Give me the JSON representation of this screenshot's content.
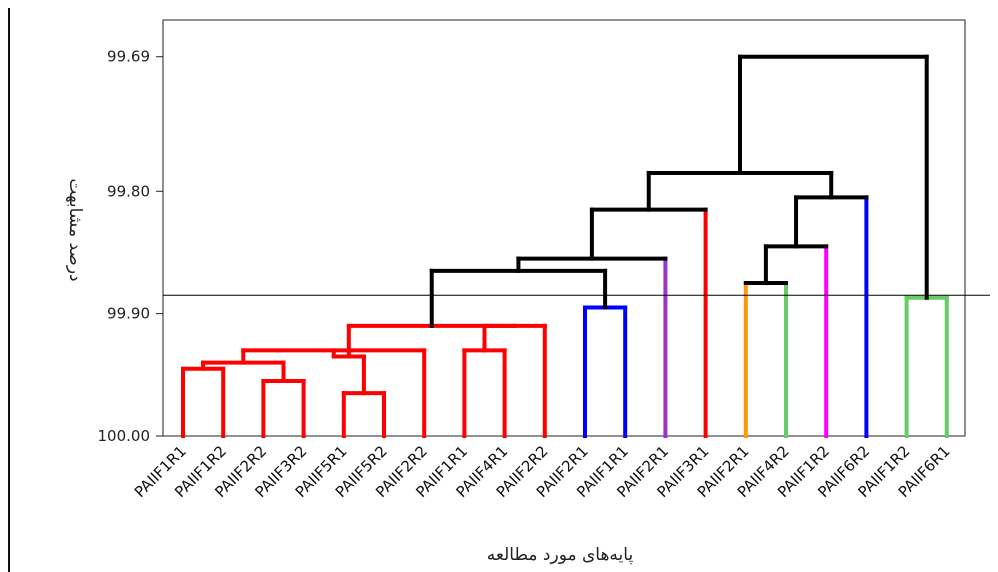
{
  "chart_data": {
    "type": "dendrogram",
    "xlabel": "پایه‌های مورد مطالعه",
    "ylabel": "درصد مشابهت",
    "yticks": [
      "99.69",
      "99.80",
      "99.90",
      "100.00"
    ],
    "ylim": [
      99.66,
      100.0
    ],
    "threshold_line": 99.885,
    "leaves": [
      "PAIIF1R1",
      "PAIIF1R2",
      "PAIIF2R2",
      "PAIIF3R2",
      "PAIIF5R1",
      "PAIIF5R2",
      "PAIIF2R2",
      "PAIIF1R1",
      "PAIIF4R1",
      "PAIIF2R2",
      "PAIIF2R1",
      "PAIIF1R1",
      "PAIIF2R1",
      "PAIIF3R1",
      "PAIIF2R1",
      "PAIIF4R2",
      "PAIIF1R2",
      "PAIIF6R2",
      "PAIIF1R2",
      "PAIIF6R1"
    ],
    "merges": [
      {
        "a": 0,
        "b": 1,
        "height": 99.945,
        "color": "#ff0000"
      },
      {
        "a": 2,
        "b": 3,
        "height": 99.955,
        "color": "#ff0000"
      },
      {
        "a": 4,
        "b": 5,
        "height": 99.965,
        "color": "#ff0000"
      },
      {
        "a": 7,
        "b": 8,
        "height": 99.93,
        "color": "#ff0000"
      },
      {
        "a": 20,
        "b": 21,
        "height": 99.94,
        "color": "#ff0000"
      },
      {
        "a": 24,
        "b": 6,
        "height": 99.93,
        "color": "#ff0000"
      },
      {
        "a": 22,
        "b": 25,
        "height": 99.935,
        "color": "#ff0000"
      },
      {
        "a": 23,
        "b": 9,
        "height": 99.91,
        "color": "#ff0000"
      },
      {
        "a": 26,
        "b": 27,
        "height": 99.91,
        "color": "#ff0000"
      },
      {
        "a": 10,
        "b": 11,
        "height": 99.895,
        "color": "#0000ff"
      },
      {
        "a": 28,
        "b": 29,
        "height": 99.865,
        "color": "#000000"
      },
      {
        "a": 30,
        "b": 12,
        "height": 99.855,
        "color": "#000000"
      },
      {
        "a": 31,
        "b": 13,
        "height": 99.815,
        "color": "#000000"
      },
      {
        "a": 14,
        "b": 15,
        "height": 99.875,
        "color": "#000000"
      },
      {
        "a": 33,
        "b": 16,
        "height": 99.845,
        "color": "#000000"
      },
      {
        "a": 34,
        "b": 17,
        "height": 99.805,
        "color": "#000000"
      },
      {
        "a": 32,
        "b": 35,
        "height": 99.785,
        "color": "#000000"
      },
      {
        "a": 18,
        "b": 19,
        "height": 99.887,
        "color": "#66cc66"
      },
      {
        "a": 36,
        "b": 37,
        "height": 99.69,
        "color": "#000000"
      }
    ],
    "stems": {
      "12": "#9933cc",
      "13": "#ff0000",
      "14": "#ff9900",
      "15": "#66cc66",
      "16": "#ff00ff",
      "17": "#0000ff"
    }
  }
}
